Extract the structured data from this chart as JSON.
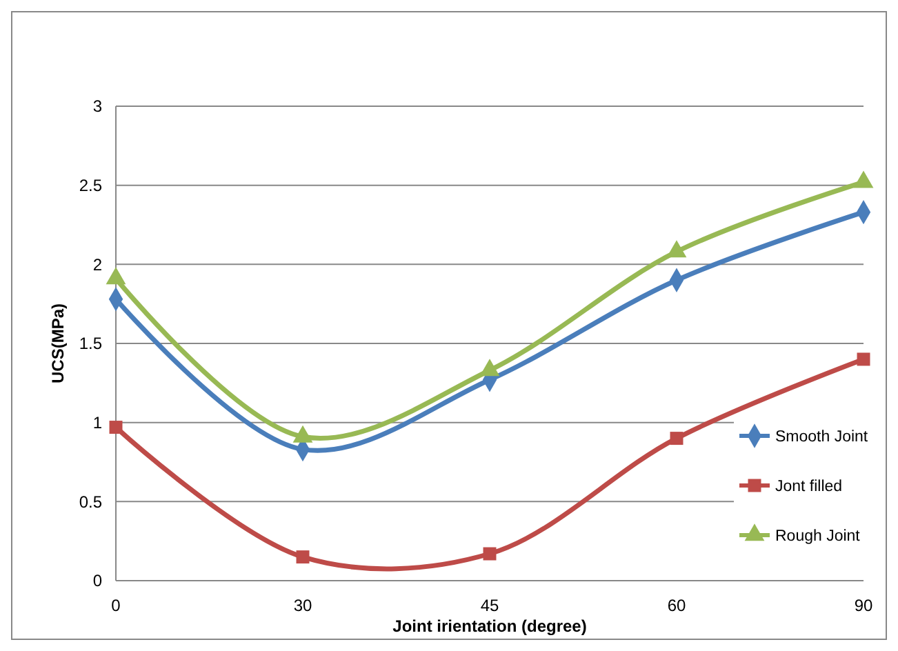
{
  "chart_data": {
    "type": "line",
    "xlabel": "Joint irientation (degree)",
    "ylabel": "UCS(MPa)",
    "categories": [
      "0",
      "30",
      "45",
      "60",
      "90"
    ],
    "series": [
      {
        "name": "Smooth Joint",
        "color": "#4a7ebb",
        "marker": "diamond",
        "values": [
          1.78,
          0.83,
          1.27,
          1.9,
          2.33
        ]
      },
      {
        "name": "Jont filled",
        "color": "#be4b48",
        "marker": "square",
        "values": [
          0.97,
          0.15,
          0.17,
          0.9,
          1.4
        ]
      },
      {
        "name": "Rough Joint",
        "color": "#98b954",
        "marker": "triangle",
        "values": [
          1.91,
          0.91,
          1.33,
          2.08,
          2.52
        ]
      }
    ],
    "ylim": [
      0,
      3
    ],
    "yticks": [
      0,
      0.5,
      1,
      1.5,
      2,
      2.5,
      3
    ],
    "grid": "y",
    "legend": "right",
    "line_style": "solid"
  }
}
